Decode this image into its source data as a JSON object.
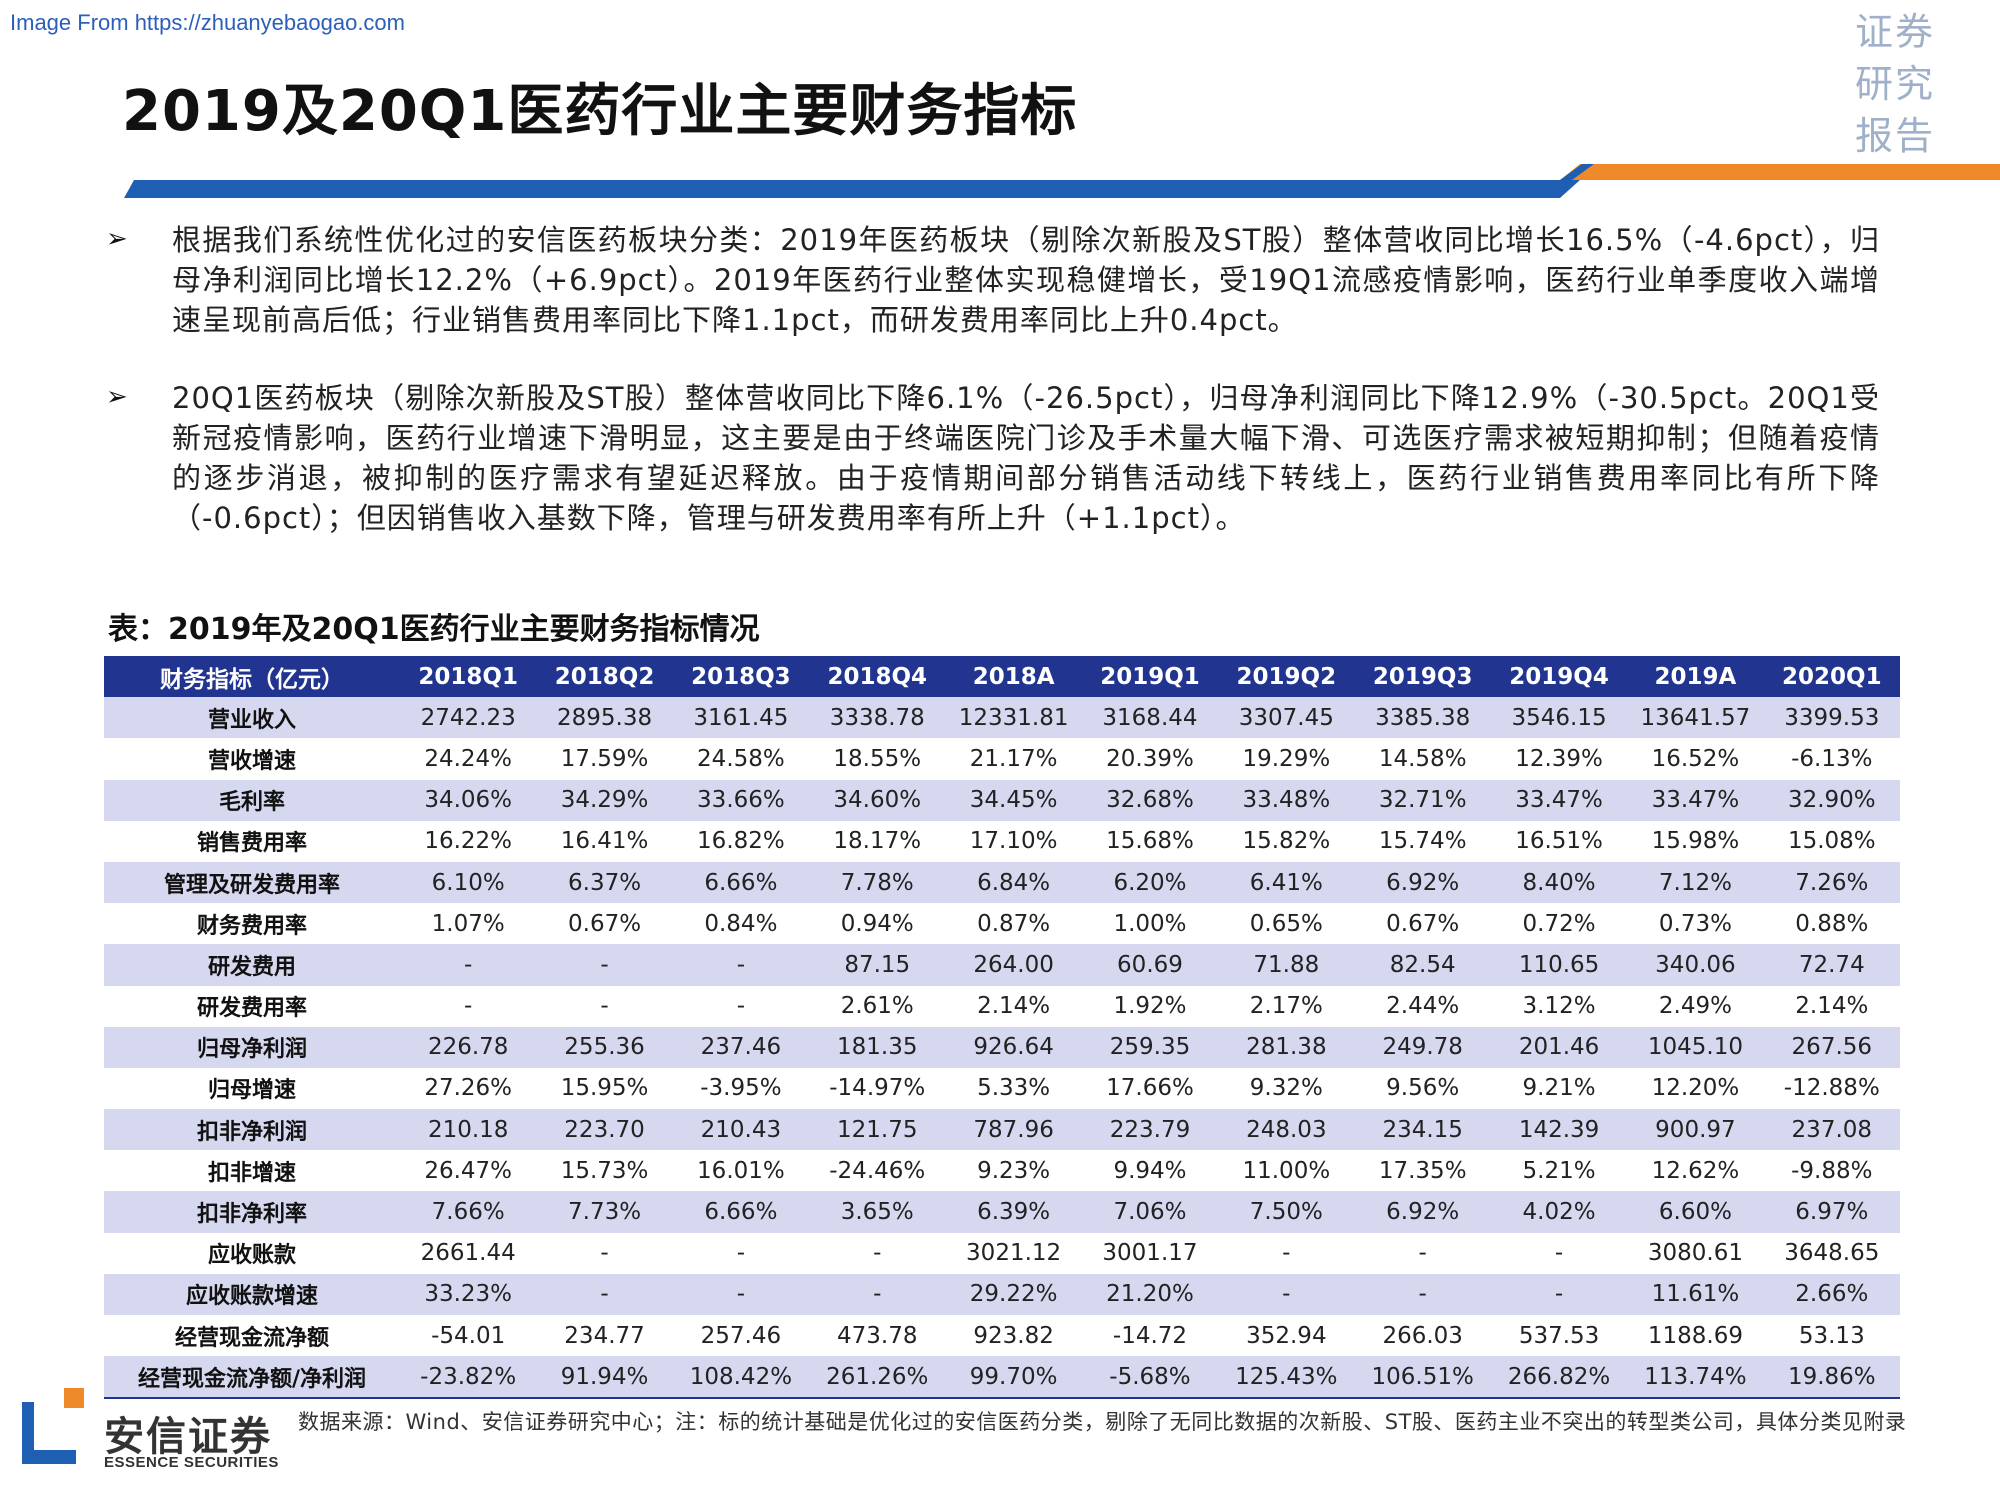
{
  "watermark": "Image From https://zhuanyebaogao.com",
  "stamp": [
    "证券",
    "研究",
    "报告"
  ],
  "title": "2019及20Q1医药行业主要财务指标",
  "colors": {
    "header": "#21348f",
    "stripe": "#d6d8f0",
    "band_blue": "#1e5fb4",
    "band_orange": "#ee8a2a"
  },
  "bullets": [
    {
      "icon": "arrow-bullet-icon",
      "text": "根据我们系统性优化过的安信医药板块分类：2019年医药板块（剔除次新股及ST股）整体营收同比增长16.5%（-4.6pct），归母净利润同比增长12.2%（+6.9pct）。2019年医药行业整体实现稳健增长，受19Q1流感疫情影响，医药行业单季度收入端增速呈现前高后低；行业销售费用率同比下降1.1pct，而研发费用率同比上升0.4pct。"
    },
    {
      "icon": "arrow-bullet-icon",
      "text": "20Q1医药板块（剔除次新股及ST股）整体营收同比下降6.1%（-26.5pct），归母净利润同比下降12.9%（-30.5pct。20Q1受新冠疫情影响，医药行业增速下滑明显，这主要是由于终端医院门诊及手术量大幅下滑、可选医疗需求被短期抑制；但随着疫情的逐步消退，被抑制的医疗需求有望延迟释放。由于疫情期间部分销售活动线下转线上，医药行业销售费用率同比有所下降（-0.6pct）；但因销售收入基数下降，管理与研发费用率有所上升（+1.1pct）。"
    }
  ],
  "table": {
    "caption": "表：2019年及20Q1医药行业主要财务指标情况",
    "headers": [
      "财务指标（亿元）",
      "2018Q1",
      "2018Q2",
      "2018Q3",
      "2018Q4",
      "2018A",
      "2019Q1",
      "2019Q2",
      "2019Q3",
      "2019Q4",
      "2019A",
      "2020Q1"
    ],
    "rows": [
      [
        "营业收入",
        "2742.23",
        "2895.38",
        "3161.45",
        "3338.78",
        "12331.81",
        "3168.44",
        "3307.45",
        "3385.38",
        "3546.15",
        "13641.57",
        "3399.53"
      ],
      [
        "营收增速",
        "24.24%",
        "17.59%",
        "24.58%",
        "18.55%",
        "21.17%",
        "20.39%",
        "19.29%",
        "14.58%",
        "12.39%",
        "16.52%",
        "-6.13%"
      ],
      [
        "毛利率",
        "34.06%",
        "34.29%",
        "33.66%",
        "34.60%",
        "34.45%",
        "32.68%",
        "33.48%",
        "32.71%",
        "33.47%",
        "33.47%",
        "32.90%"
      ],
      [
        "销售费用率",
        "16.22%",
        "16.41%",
        "16.82%",
        "18.17%",
        "17.10%",
        "15.68%",
        "15.82%",
        "15.74%",
        "16.51%",
        "15.98%",
        "15.08%"
      ],
      [
        "管理及研发费用率",
        "6.10%",
        "6.37%",
        "6.66%",
        "7.78%",
        "6.84%",
        "6.20%",
        "6.41%",
        "6.92%",
        "8.40%",
        "7.12%",
        "7.26%"
      ],
      [
        "财务费用率",
        "1.07%",
        "0.67%",
        "0.84%",
        "0.94%",
        "0.87%",
        "1.00%",
        "0.65%",
        "0.67%",
        "0.72%",
        "0.73%",
        "0.88%"
      ],
      [
        "研发费用",
        "-",
        "-",
        "-",
        "87.15",
        "264.00",
        "60.69",
        "71.88",
        "82.54",
        "110.65",
        "340.06",
        "72.74"
      ],
      [
        "研发费用率",
        "-",
        "-",
        "-",
        "2.61%",
        "2.14%",
        "1.92%",
        "2.17%",
        "2.44%",
        "3.12%",
        "2.49%",
        "2.14%"
      ],
      [
        "归母净利润",
        "226.78",
        "255.36",
        "237.46",
        "181.35",
        "926.64",
        "259.35",
        "281.38",
        "249.78",
        "201.46",
        "1045.10",
        "267.56"
      ],
      [
        "归母增速",
        "27.26%",
        "15.95%",
        "-3.95%",
        "-14.97%",
        "5.33%",
        "17.66%",
        "9.32%",
        "9.56%",
        "9.21%",
        "12.20%",
        "-12.88%"
      ],
      [
        "扣非净利润",
        "210.18",
        "223.70",
        "210.43",
        "121.75",
        "787.96",
        "223.79",
        "248.03",
        "234.15",
        "142.39",
        "900.97",
        "237.08"
      ],
      [
        "扣非增速",
        "26.47%",
        "15.73%",
        "16.01%",
        "-24.46%",
        "9.23%",
        "9.94%",
        "11.00%",
        "17.35%",
        "5.21%",
        "12.62%",
        "-9.88%"
      ],
      [
        "扣非净利率",
        "7.66%",
        "7.73%",
        "6.66%",
        "3.65%",
        "6.39%",
        "7.06%",
        "7.50%",
        "6.92%",
        "4.02%",
        "6.60%",
        "6.97%"
      ],
      [
        "应收账款",
        "2661.44",
        "-",
        "-",
        "-",
        "3021.12",
        "3001.17",
        "-",
        "-",
        "-",
        "3080.61",
        "3648.65"
      ],
      [
        "应收账款增速",
        "33.23%",
        "-",
        "-",
        "-",
        "29.22%",
        "21.20%",
        "-",
        "-",
        "-",
        "11.61%",
        "2.66%"
      ],
      [
        "经营现金流净额",
        "-54.01",
        "234.77",
        "257.46",
        "473.78",
        "923.82",
        "-14.72",
        "352.94",
        "266.03",
        "537.53",
        "1188.69",
        "53.13"
      ],
      [
        "经营现金流净额/净利润",
        "-23.82%",
        "91.94%",
        "108.42%",
        "261.26%",
        "99.70%",
        "-5.68%",
        "125.43%",
        "106.51%",
        "266.82%",
        "113.74%",
        "19.86%"
      ]
    ]
  },
  "footer": {
    "logo_cn": "安信证券",
    "logo_en": "ESSENCE SECURITIES",
    "source": "数据来源：Wind、安信证券研究中心；注：标的统计基础是优化过的安信医药分类，剔除了无同比数据的次新股、ST股、医药主业不突出的转型类公司，具体分类见附录"
  }
}
